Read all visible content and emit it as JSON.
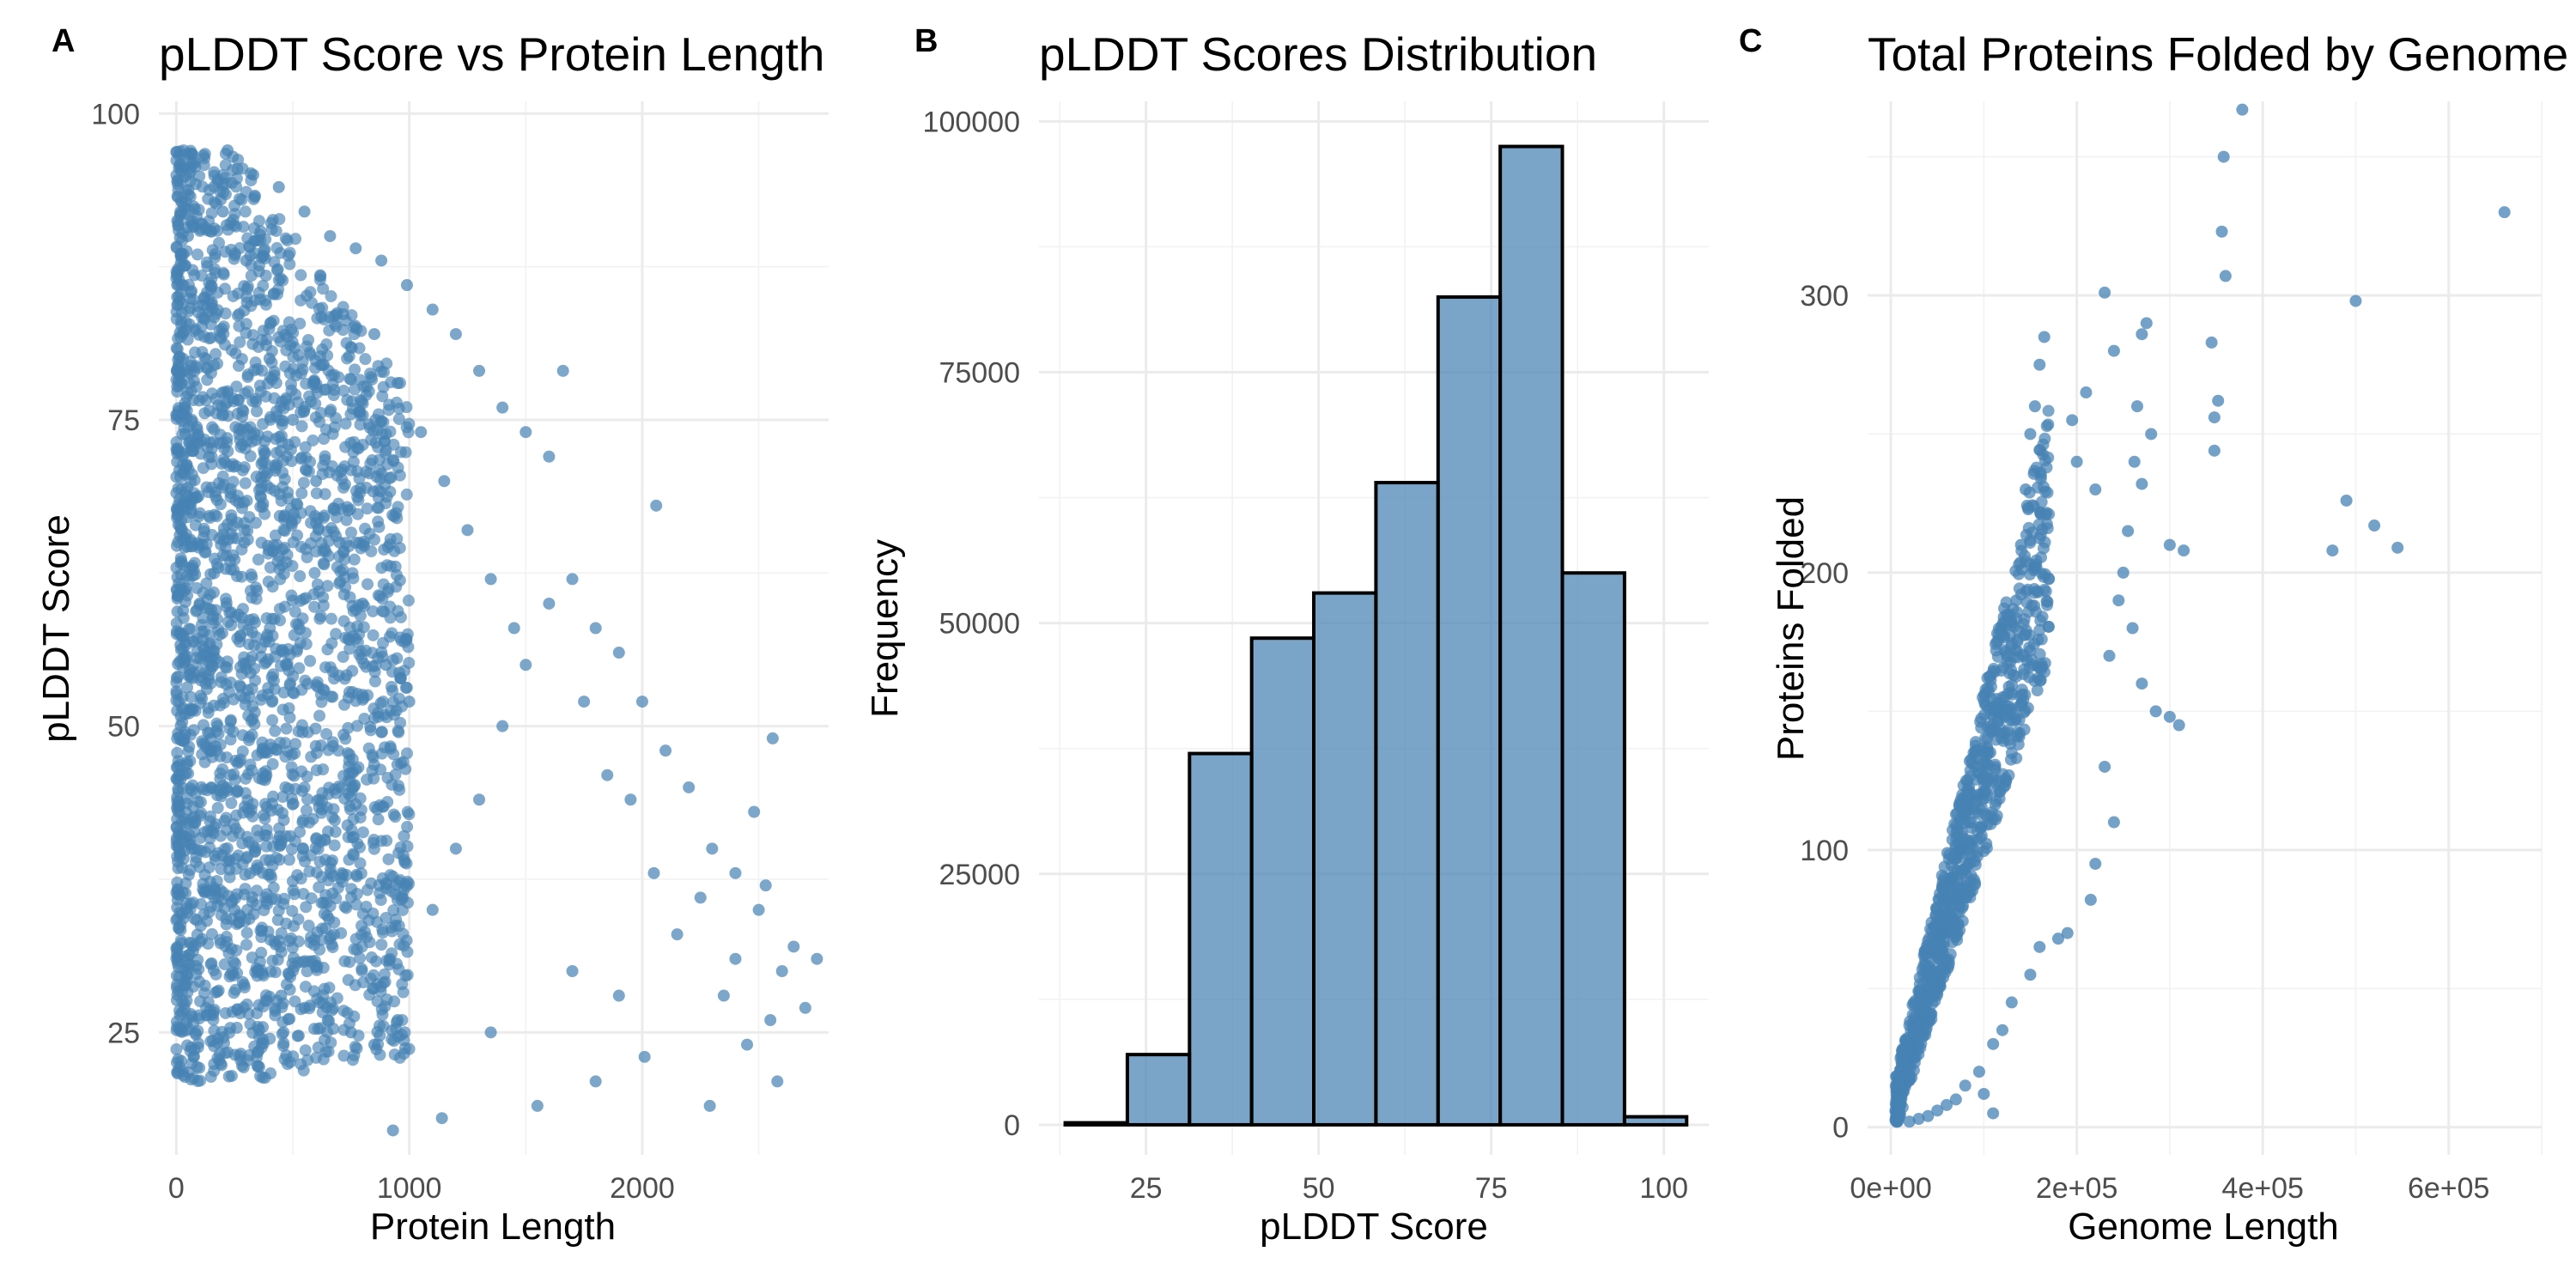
{
  "colors": {
    "point": "#4682b4",
    "bar_fill": "#4682b4",
    "bar_stroke": "#000000",
    "grid": "#ebebeb"
  },
  "chart_data": [
    {
      "panel": "A",
      "type": "scatter",
      "title": "pLDDT Score vs Protein Length",
      "xlabel": "Protein Length",
      "ylabel": "pLDDT Score",
      "xlim": [
        -75,
        2800
      ],
      "ylim": [
        15,
        101
      ],
      "xticks": [
        0,
        1000,
        2000
      ],
      "xtick_labels": [
        "0",
        "1000",
        "2000"
      ],
      "yticks": [
        25,
        50,
        75,
        100
      ],
      "ytick_labels": [
        "25",
        "50",
        "75",
        "100"
      ],
      "grid": true,
      "points_description_only_for_render": false,
      "points": [
        [
          50,
          90
        ],
        [
          120,
          85
        ],
        [
          200,
          92
        ],
        [
          300,
          88
        ],
        [
          400,
          80
        ],
        [
          500,
          75
        ],
        [
          600,
          70
        ],
        [
          700,
          65
        ],
        [
          800,
          60
        ],
        [
          900,
          55
        ],
        [
          1000,
          52
        ],
        [
          100,
          60
        ],
        [
          150,
          45
        ],
        [
          250,
          35
        ],
        [
          350,
          30
        ],
        [
          450,
          28
        ],
        [
          550,
          27
        ],
        [
          650,
          26
        ],
        [
          750,
          25
        ],
        [
          850,
          24
        ],
        [
          950,
          26
        ],
        [
          220,
          97
        ],
        [
          330,
          95
        ],
        [
          440,
          94
        ],
        [
          550,
          92
        ],
        [
          660,
          90
        ],
        [
          770,
          89
        ],
        [
          880,
          88
        ],
        [
          990,
          86
        ],
        [
          1100,
          84
        ],
        [
          1200,
          82
        ],
        [
          1300,
          79
        ],
        [
          1400,
          76
        ],
        [
          1500,
          74
        ],
        [
          1600,
          72
        ],
        [
          1660,
          79
        ],
        [
          1100,
          35
        ],
        [
          1200,
          40
        ],
        [
          1300,
          44
        ],
        [
          1400,
          50
        ],
        [
          1500,
          55
        ],
        [
          1600,
          60
        ],
        [
          1700,
          62
        ],
        [
          1800,
          58
        ],
        [
          1900,
          56
        ],
        [
          2000,
          52
        ],
        [
          2060,
          68
        ],
        [
          2100,
          48
        ],
        [
          2200,
          45
        ],
        [
          2300,
          40
        ],
        [
          2400,
          38
        ],
        [
          2500,
          35
        ],
        [
          2560,
          49
        ],
        [
          2600,
          30
        ],
        [
          2700,
          27
        ],
        [
          2750,
          31
        ],
        [
          1550,
          19
        ],
        [
          1140,
          18
        ],
        [
          930,
          17
        ],
        [
          2290,
          19
        ],
        [
          2580,
          21
        ],
        [
          2010,
          23
        ],
        [
          1800,
          21
        ],
        [
          1350,
          25
        ],
        [
          1700,
          30
        ],
        [
          1900,
          28
        ],
        [
          2150,
          33
        ],
        [
          2350,
          28
        ],
        [
          2450,
          24
        ],
        [
          2550,
          26
        ],
        [
          2650,
          32
        ],
        [
          1250,
          66
        ],
        [
          1350,
          62
        ],
        [
          1450,
          58
        ],
        [
          1750,
          52
        ],
        [
          1850,
          46
        ],
        [
          1950,
          44
        ],
        [
          2050,
          38
        ],
        [
          2250,
          36
        ],
        [
          2400,
          31
        ],
        [
          2480,
          43
        ],
        [
          2530,
          37
        ],
        [
          1150,
          70
        ],
        [
          1050,
          74
        ],
        [
          950,
          78
        ],
        [
          850,
          82
        ]
      ],
      "dense_region": {
        "x_range": [
          0,
          1000
        ],
        "y_range": [
          20,
          97
        ]
      }
    },
    {
      "panel": "B",
      "type": "bar",
      "title": "pLDDT Scores Distribution",
      "xlabel": "pLDDT Score",
      "ylabel": "Frequency",
      "xlim": [
        9.5,
        106.5
      ],
      "ylim": [
        -3000,
        102000
      ],
      "xticks": [
        25,
        50,
        75,
        100
      ],
      "xtick_labels": [
        "25",
        "50",
        "75",
        "100"
      ],
      "yticks": [
        0,
        25000,
        50000,
        75000,
        100000
      ],
      "ytick_labels": [
        "0",
        "25000",
        "50000",
        "75000",
        "100000"
      ],
      "grid": true,
      "bin_edges": [
        13.3,
        22.3,
        31.3,
        40.3,
        49.3,
        58.3,
        67.3,
        76.3,
        85.3,
        94.3,
        103.3
      ],
      "values": [
        200,
        7000,
        37000,
        48500,
        53000,
        64000,
        82500,
        97500,
        55000,
        800
      ]
    },
    {
      "panel": "C",
      "type": "scatter",
      "title": "Total Proteins Folded by Genome",
      "xlabel": "Genome Length",
      "ylabel": "Proteins Folded",
      "xlim": [
        -25000,
        700000
      ],
      "ylim": [
        -10,
        370
      ],
      "xticks": [
        0,
        200000,
        400000,
        600000
      ],
      "xtick_labels": [
        "0e+00",
        "2e+05",
        "4e+05",
        "6e+05"
      ],
      "yticks": [
        0,
        100,
        200,
        300
      ],
      "ytick_labels": [
        "0",
        "100",
        "200",
        "300"
      ],
      "grid": true,
      "points": [
        [
          660000,
          330
        ],
        [
          378000,
          367
        ],
        [
          358000,
          350
        ],
        [
          356000,
          323
        ],
        [
          360000,
          307
        ],
        [
          500000,
          298
        ],
        [
          230000,
          301
        ],
        [
          275000,
          290
        ],
        [
          270000,
          286
        ],
        [
          240000,
          280
        ],
        [
          300000,
          210
        ],
        [
          315000,
          208
        ],
        [
          345000,
          283
        ],
        [
          352000,
          262
        ],
        [
          348000,
          256
        ],
        [
          348000,
          244
        ],
        [
          490000,
          226
        ],
        [
          520000,
          217
        ],
        [
          545000,
          209
        ],
        [
          475000,
          208
        ],
        [
          262000,
          240
        ],
        [
          270000,
          232
        ],
        [
          265000,
          260
        ],
        [
          280000,
          250
        ],
        [
          255000,
          215
        ],
        [
          250000,
          200
        ],
        [
          245000,
          190
        ],
        [
          235000,
          170
        ],
        [
          260000,
          180
        ],
        [
          270000,
          160
        ],
        [
          285000,
          150
        ],
        [
          300000,
          148
        ],
        [
          310000,
          145
        ],
        [
          230000,
          130
        ],
        [
          240000,
          110
        ],
        [
          220000,
          95
        ],
        [
          215000,
          82
        ],
        [
          180000,
          68
        ],
        [
          190000,
          70
        ],
        [
          160000,
          65
        ],
        [
          150000,
          55
        ],
        [
          130000,
          45
        ],
        [
          120000,
          35
        ],
        [
          110000,
          30
        ],
        [
          95000,
          20
        ],
        [
          80000,
          15
        ],
        [
          70000,
          10
        ],
        [
          60000,
          8
        ],
        [
          50000,
          6
        ],
        [
          40000,
          4
        ],
        [
          30000,
          3
        ],
        [
          20000,
          2
        ],
        [
          110000,
          5
        ],
        [
          100000,
          12
        ],
        [
          165000,
          285
        ],
        [
          160000,
          275
        ],
        [
          155000,
          260
        ],
        [
          150000,
          250
        ],
        [
          145000,
          230
        ],
        [
          140000,
          210
        ],
        [
          135000,
          190
        ],
        [
          125000,
          170
        ],
        [
          115000,
          150
        ],
        [
          105000,
          135
        ],
        [
          95000,
          120
        ],
        [
          85000,
          110
        ],
        [
          75000,
          100
        ],
        [
          65000,
          90
        ],
        [
          55000,
          70
        ],
        [
          45000,
          55
        ],
        [
          35000,
          40
        ],
        [
          25000,
          25
        ],
        [
          200000,
          240
        ],
        [
          210000,
          265
        ],
        [
          220000,
          230
        ],
        [
          195000,
          255
        ]
      ],
      "dense_region": {
        "x_range": [
          5000,
          170000
        ],
        "y_range": [
          2,
          285
        ]
      }
    }
  ],
  "panels": {
    "a": {
      "letter": "A"
    },
    "b": {
      "letter": "B"
    },
    "c": {
      "letter": "C"
    }
  }
}
